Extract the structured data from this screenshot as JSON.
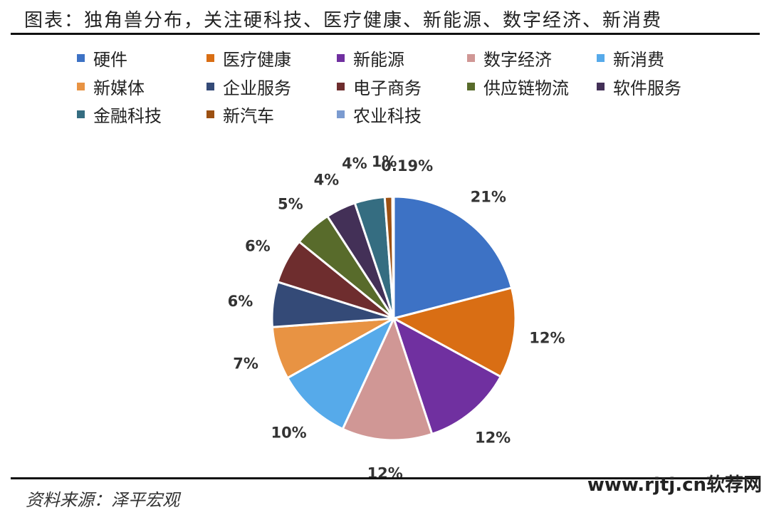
{
  "title": "图表：独角兽分布，关注硬科技、医疗健康、新能源、数字经济、新消费",
  "source": "资料来源：泽平宏观",
  "watermark": "www.rjtj.cn软荐网",
  "chart_data": {
    "type": "pie",
    "categories": [
      "硬件",
      "医疗健康",
      "新能源",
      "数字经济",
      "新消费",
      "新媒体",
      "企业服务",
      "电子商务",
      "供应链物流",
      "软件服务",
      "金融科技",
      "新汽车",
      "农业科技"
    ],
    "values": [
      21,
      12,
      12,
      12,
      10,
      7,
      6,
      6,
      5,
      4,
      4,
      1,
      0.19
    ],
    "value_labels": [
      "21%",
      "12%",
      "12%",
      "12%",
      "10%",
      "7%",
      "6%",
      "6%",
      "5%",
      "4%",
      "4%",
      "1%",
      "0.19%"
    ],
    "colors": [
      "#3d72c5",
      "#d96e14",
      "#7030a0",
      "#d09795",
      "#56aaea",
      "#e89343",
      "#344a77",
      "#6e2d2e",
      "#586b2b",
      "#433057",
      "#356d81",
      "#9c5012",
      "#7b9bd0"
    ],
    "legend_position": "top",
    "start_angle_deg": 0,
    "direction": "clockwise"
  }
}
